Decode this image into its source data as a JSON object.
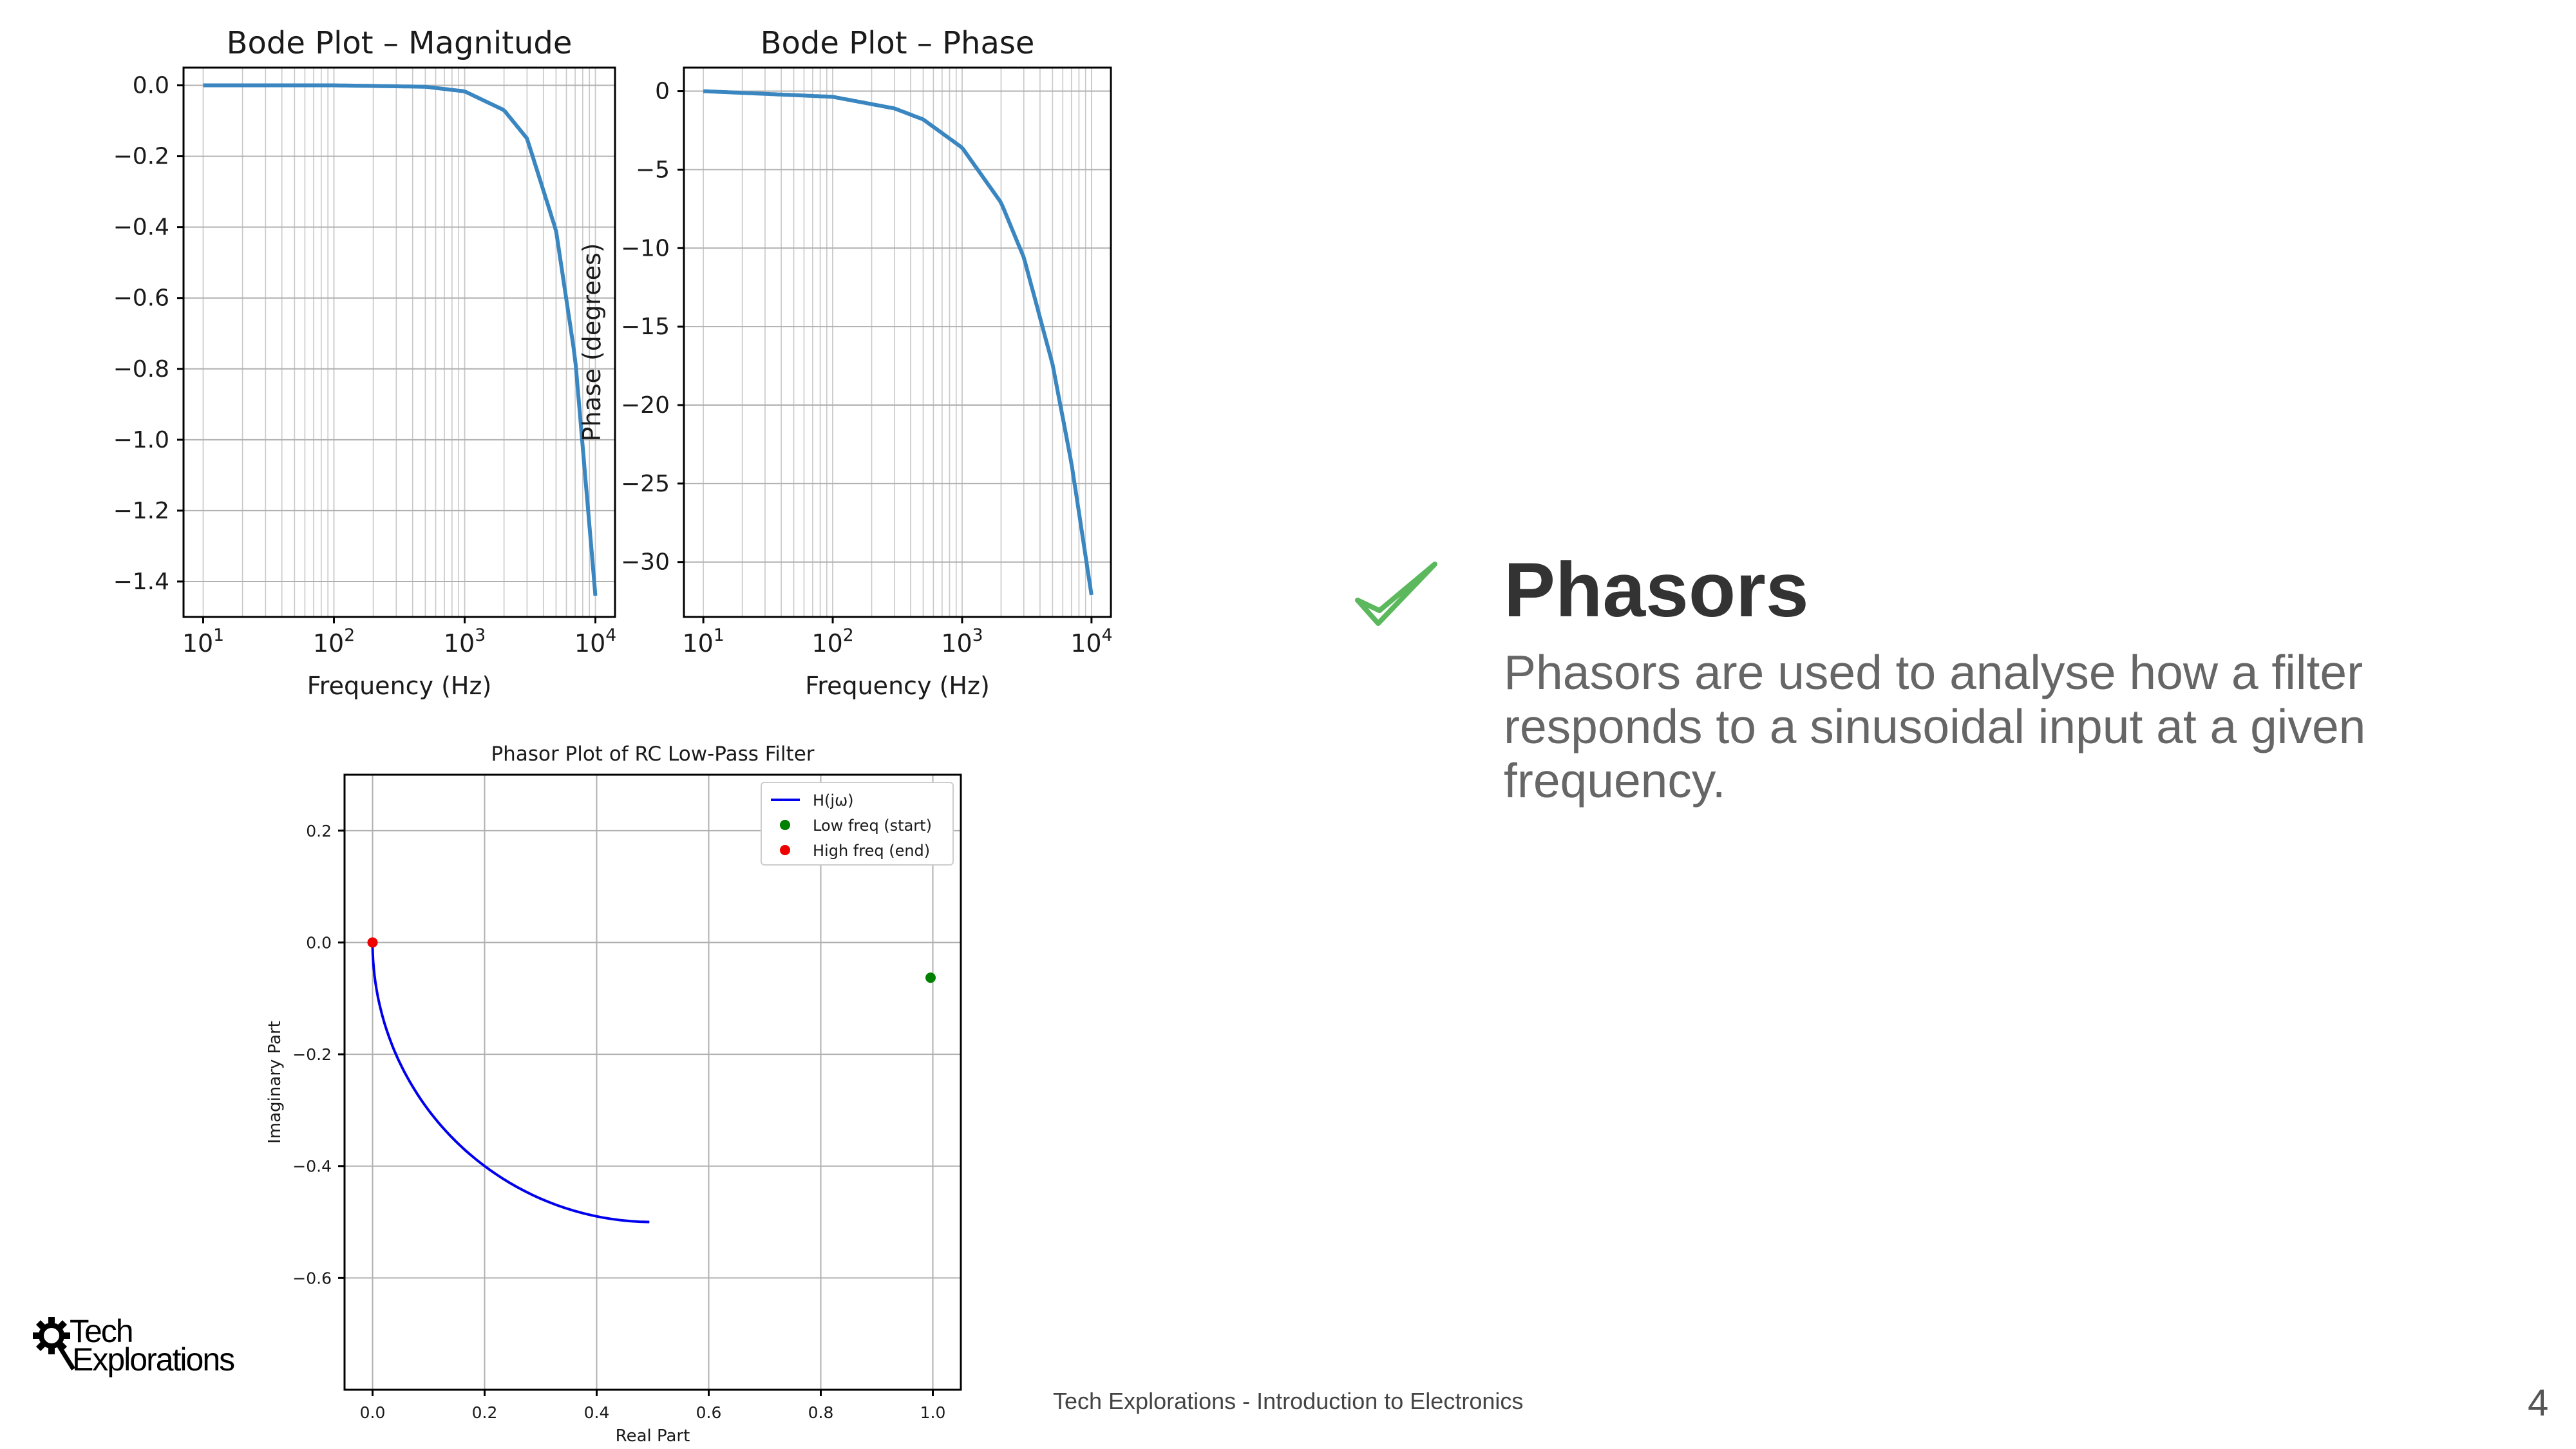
{
  "slide": {
    "title": "Phasors",
    "body": "Phasors are used to analyse how a filter responds to a sinusoidal input at a given frequency.",
    "footer": "Tech Explorations - Introduction to Electronics",
    "page_number": "4",
    "logo_line1": "Tech",
    "logo_line2": "Explorations",
    "accent_color": "#5cb85c"
  },
  "chart_data": [
    {
      "type": "line",
      "title": "Bode Plot – Magnitude",
      "xlabel": "Frequency (Hz)",
      "ylabel": "",
      "xscale": "log",
      "xlim": [
        10,
        10000
      ],
      "ylim": [
        -1.5,
        0.05
      ],
      "x_ticks": [
        "10^1",
        "10^2",
        "10^3",
        "10^4"
      ],
      "y_ticks": [
        "0.0",
        "−0.2",
        "−0.4",
        "−0.6",
        "−0.8",
        "−1.0",
        "−1.2",
        "−1.4"
      ],
      "series": [
        {
          "name": "Magnitude",
          "color": "#3a86c0",
          "x": [
            10,
            100,
            500,
            1000,
            2000,
            3000,
            5000,
            7000,
            10000
          ],
          "values": [
            0,
            0,
            -0.004,
            -0.017,
            -0.07,
            -0.15,
            -0.41,
            -0.77,
            -1.44
          ]
        }
      ],
      "grid": true
    },
    {
      "type": "line",
      "title": "Bode Plot – Phase",
      "xlabel": "Frequency (Hz)",
      "ylabel": "Phase (degrees)",
      "xscale": "log",
      "xlim": [
        10,
        10000
      ],
      "ylim": [
        -33.5,
        1.5
      ],
      "x_ticks": [
        "10^1",
        "10^2",
        "10^3",
        "10^4"
      ],
      "y_ticks": [
        "0",
        "−5",
        "−10",
        "−15",
        "−20",
        "−25",
        "−30"
      ],
      "series": [
        {
          "name": "Phase",
          "color": "#3a86c0",
          "x": [
            10,
            100,
            300,
            500,
            1000,
            2000,
            3000,
            5000,
            7000,
            10000
          ],
          "values": [
            0,
            -0.36,
            -1.1,
            -1.8,
            -3.6,
            -7.1,
            -10.6,
            -17.4,
            -23.7,
            -32.1
          ]
        }
      ],
      "grid": true
    },
    {
      "type": "line",
      "title": "Phasor Plot of RC Low-Pass Filter",
      "xlabel": "Real Part",
      "ylabel": "Imaginary Part",
      "xlim": [
        -0.05,
        1.05
      ],
      "ylim": [
        -0.8,
        0.3
      ],
      "x_ticks": [
        "0.0",
        "0.2",
        "0.4",
        "0.6",
        "0.8",
        "1.0"
      ],
      "y_ticks": [
        "0.2",
        "0.0",
        "−0.2",
        "−0.4",
        "−0.6"
      ],
      "series": [
        {
          "name": "H(jω)",
          "color": "#0000ee"
        }
      ],
      "points": [
        {
          "name": "Low freq (start)",
          "color": "#008000",
          "x": 0.996,
          "y": -0.063
        },
        {
          "name": "High freq (end)",
          "color": "#ee0000",
          "x": 0.0,
          "y": 0.0
        }
      ],
      "legend": [
        "H(jω)",
        "Low freq (start)",
        "High freq (end)"
      ],
      "legend_position": "top-right",
      "grid": true
    }
  ]
}
